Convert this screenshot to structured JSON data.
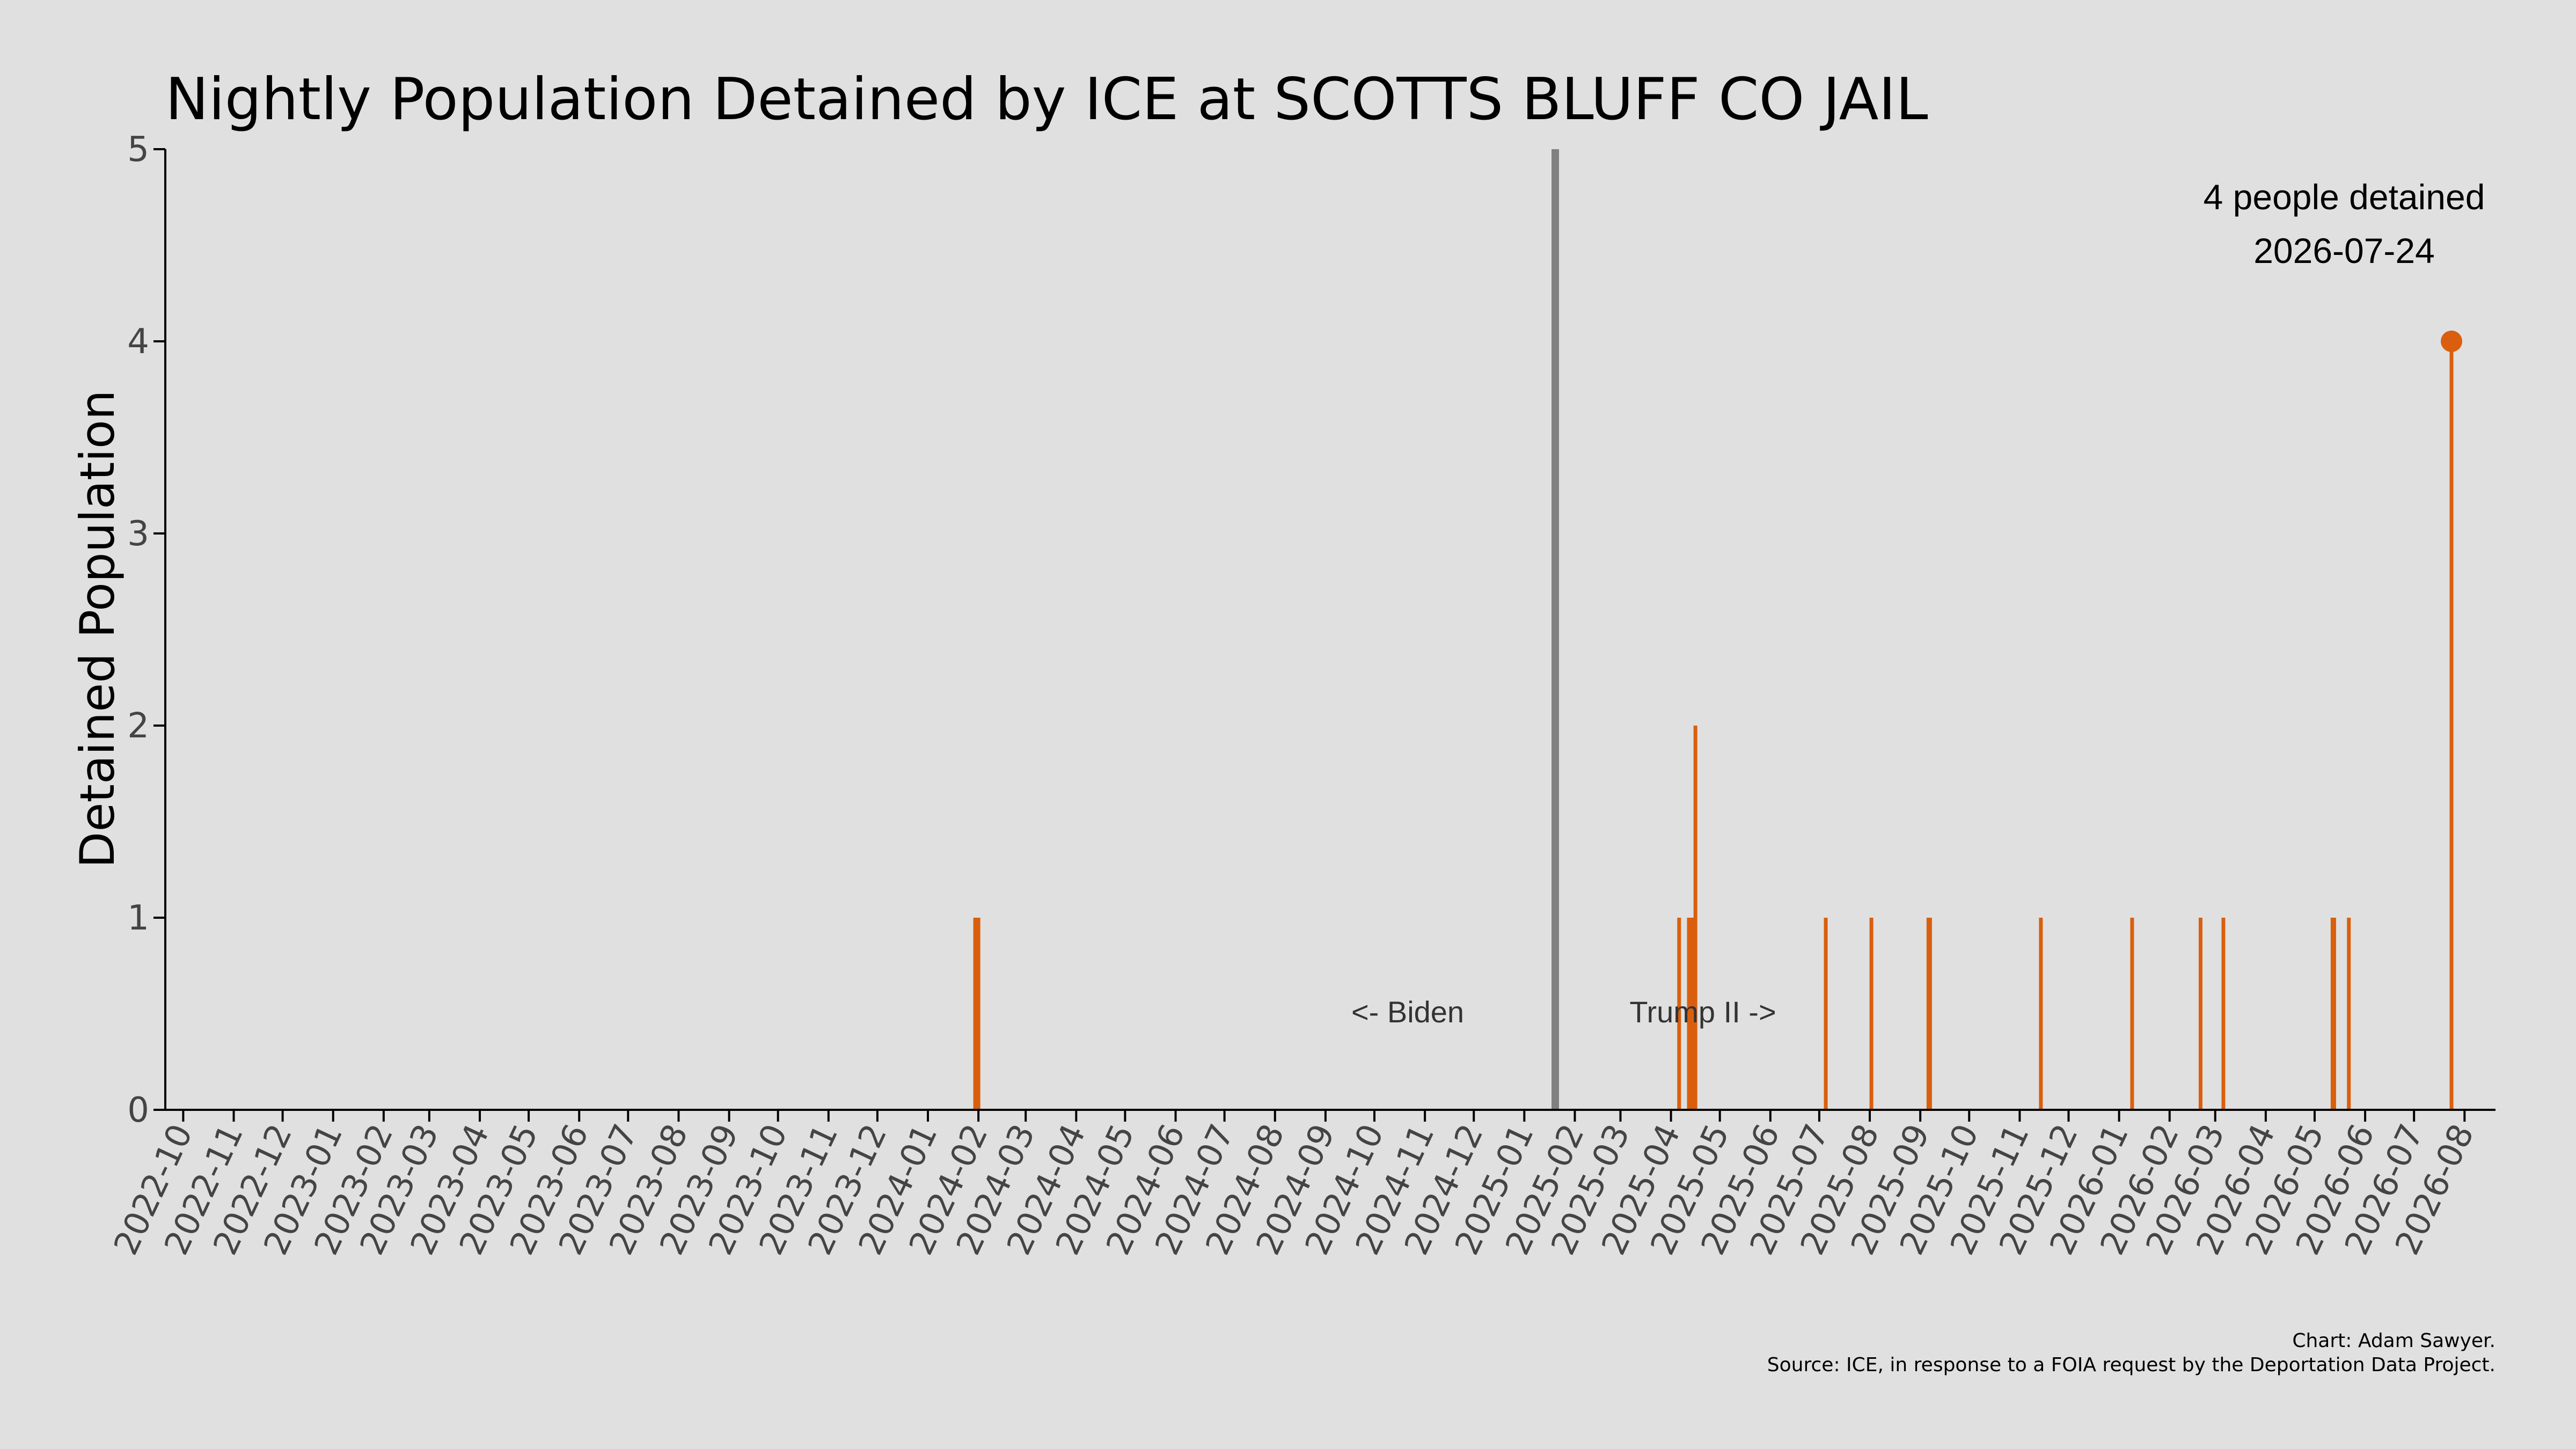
{
  "chart_data": {
    "type": "bar",
    "title": "Nightly Population Detained by ICE at SCOTTS BLUFF CO JAIL",
    "ylabel": "Detained Population",
    "xlabel": "",
    "ylim": [
      0,
      5
    ],
    "xlim": [
      "2022-09-20",
      "2026-08-20"
    ],
    "yticks": [
      0,
      1,
      2,
      3,
      4,
      5
    ],
    "xticks": [
      "2022-10",
      "2022-11",
      "2022-12",
      "2023-01",
      "2023-02",
      "2023-03",
      "2023-04",
      "2023-05",
      "2023-06",
      "2023-07",
      "2023-08",
      "2023-09",
      "2023-10",
      "2023-11",
      "2023-12",
      "2024-01",
      "2024-02",
      "2024-03",
      "2024-04",
      "2024-05",
      "2024-06",
      "2024-07",
      "2024-08",
      "2024-09",
      "2024-10",
      "2024-11",
      "2024-12",
      "2025-01",
      "2025-02",
      "2025-03",
      "2025-04",
      "2025-05",
      "2025-06",
      "2025-07",
      "2025-08",
      "2025-09",
      "2025-10",
      "2025-11",
      "2025-12",
      "2026-01",
      "2026-02",
      "2026-03",
      "2026-04",
      "2026-05",
      "2026-06",
      "2026-07",
      "2026-08"
    ],
    "grid": false,
    "bar_color": "#d95f0e",
    "divider_color": "#808080",
    "divider_date": "2025-01-20",
    "era_labels": {
      "left": "<- Biden",
      "right": "Trump II ->"
    },
    "points": [
      {
        "x": "2024-01-30",
        "y": 1
      },
      {
        "x": "2024-01-31",
        "y": 1
      },
      {
        "x": "2024-02-01",
        "y": 1
      },
      {
        "x": "2025-04-06",
        "y": 1
      },
      {
        "x": "2025-04-12",
        "y": 1
      },
      {
        "x": "2025-04-14",
        "y": 1
      },
      {
        "x": "2025-04-15",
        "y": 1
      },
      {
        "x": "2025-04-16",
        "y": 2
      },
      {
        "x": "2025-07-05",
        "y": 1
      },
      {
        "x": "2025-08-02",
        "y": 1
      },
      {
        "x": "2025-09-06",
        "y": 1
      },
      {
        "x": "2025-09-07",
        "y": 1
      },
      {
        "x": "2025-11-14",
        "y": 1
      },
      {
        "x": "2026-01-09",
        "y": 1
      },
      {
        "x": "2026-02-20",
        "y": 1
      },
      {
        "x": "2026-03-06",
        "y": 1
      },
      {
        "x": "2026-05-12",
        "y": 1
      },
      {
        "x": "2026-05-13",
        "y": 1
      },
      {
        "x": "2026-05-22",
        "y": 1
      },
      {
        "x": "2026-07-24",
        "y": 4
      }
    ],
    "highlight": {
      "x": "2026-07-24",
      "y": 4,
      "label_line1": "4 people detained",
      "label_line2": "2026-07-24"
    },
    "credits": {
      "line1": "Chart: Adam Sawyer.",
      "line2": "Source: ICE, in response to a FOIA request by the Deportation Data Project."
    }
  }
}
